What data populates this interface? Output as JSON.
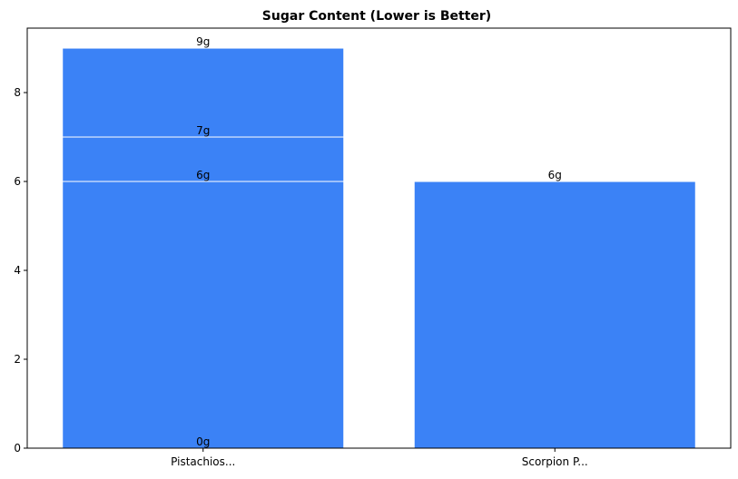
{
  "chart_data": {
    "type": "bar",
    "title": "Sugar Content (Lower is Better)",
    "xlabel": "",
    "ylabel": "",
    "ylim": [
      0,
      9.45
    ],
    "yticks": [
      0,
      2,
      4,
      6,
      8
    ],
    "grid": false,
    "bar_color": "#3b82f6",
    "bar_edge_color": "#ffffff",
    "categories": [
      "Pistachios...",
      "Scorpion P..."
    ],
    "bars": [
      {
        "category_index": 0,
        "value": 9,
        "label": "9g"
      },
      {
        "category_index": 0,
        "value": 7,
        "label": "7g"
      },
      {
        "category_index": 0,
        "value": 6,
        "label": "6g"
      },
      {
        "category_index": 0,
        "value": 0,
        "label": "0g"
      },
      {
        "category_index": 1,
        "value": 6,
        "label": "6g"
      }
    ]
  }
}
